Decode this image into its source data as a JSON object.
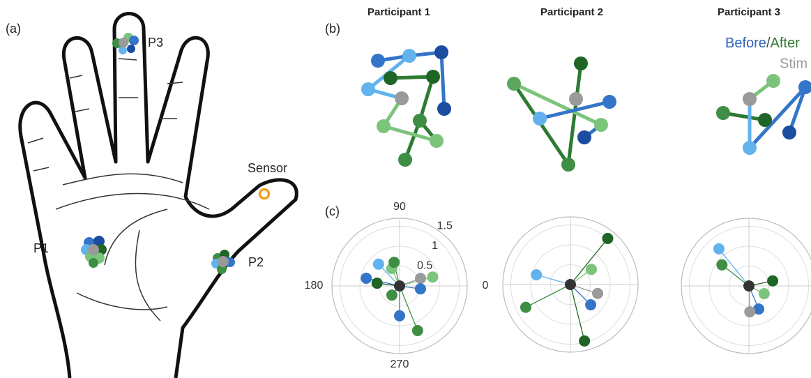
{
  "figure": {
    "panel_a": "(a)",
    "panel_b": "(b)",
    "panel_c": "(c)",
    "p1": "P1",
    "p2": "P2",
    "p3": "P3",
    "sensor": "Sensor",
    "participants": [
      "Participant 1",
      "Participant 2",
      "Participant 3"
    ],
    "legend": {
      "before": "Before",
      "slash": "/",
      "after": "After",
      "stim": "Stim"
    }
  },
  "chart_data": [
    {
      "type": "polar",
      "rlim": [
        0,
        1.7
      ],
      "rticks": [
        0.5,
        1,
        1.5
      ],
      "thetaticks": [
        0,
        90,
        180,
        270
      ],
      "show_tick_labels": true,
      "theta": [
        134,
        114,
        103,
        15,
        20,
        167,
        173,
        230,
        352,
        270,
        292,
        0
      ],
      "r": [
        0.76,
        0.48,
        0.61,
        0.86,
        0.56,
        0.86,
        0.57,
        0.3,
        0.53,
        0.75,
        1.21,
        0
      ],
      "colors": [
        "#62b2ee",
        "#7cc47c",
        "#3e8e46",
        "#7cc47c",
        "#9a9a9a",
        "#3575c9",
        "#1e6526",
        "#3e8e46",
        "#3575c9",
        "#3575c9",
        "#3e8e46",
        "#333333"
      ]
    },
    {
      "type": "polar",
      "rlim": [
        0,
        1.7
      ],
      "rticks": [
        0.5,
        1,
        1.5
      ],
      "thetaticks": [
        0,
        90,
        180,
        270
      ],
      "show_tick_labels": false,
      "theta": [
        51,
        36,
        164,
        342,
        315,
        207,
        284,
        0
      ],
      "r": [
        1.49,
        0.65,
        0.89,
        0.72,
        0.72,
        1.26,
        1.46,
        0
      ],
      "colors": [
        "#1e6526",
        "#7cc47c",
        "#62b2ee",
        "#9a9a9a",
        "#3575c9",
        "#3e8e46",
        "#1e6526",
        "#333333"
      ]
    },
    {
      "type": "polar",
      "rlim": [
        0,
        1.7
      ],
      "rticks": [
        0.5,
        1,
        1.5
      ],
      "thetaticks": [
        0,
        90,
        180,
        270
      ],
      "show_tick_labels": false,
      "theta": [
        129,
        142,
        12,
        333,
        293,
        272,
        0
      ],
      "r": [
        1.2,
        0.86,
        0.61,
        0.43,
        0.63,
        0.65,
        0
      ],
      "colors": [
        "#62b2ee",
        "#3e8e46",
        "#1e6526",
        "#7cc47c",
        "#3575c9",
        "#9a9a9a",
        "#333333"
      ]
    }
  ]
}
